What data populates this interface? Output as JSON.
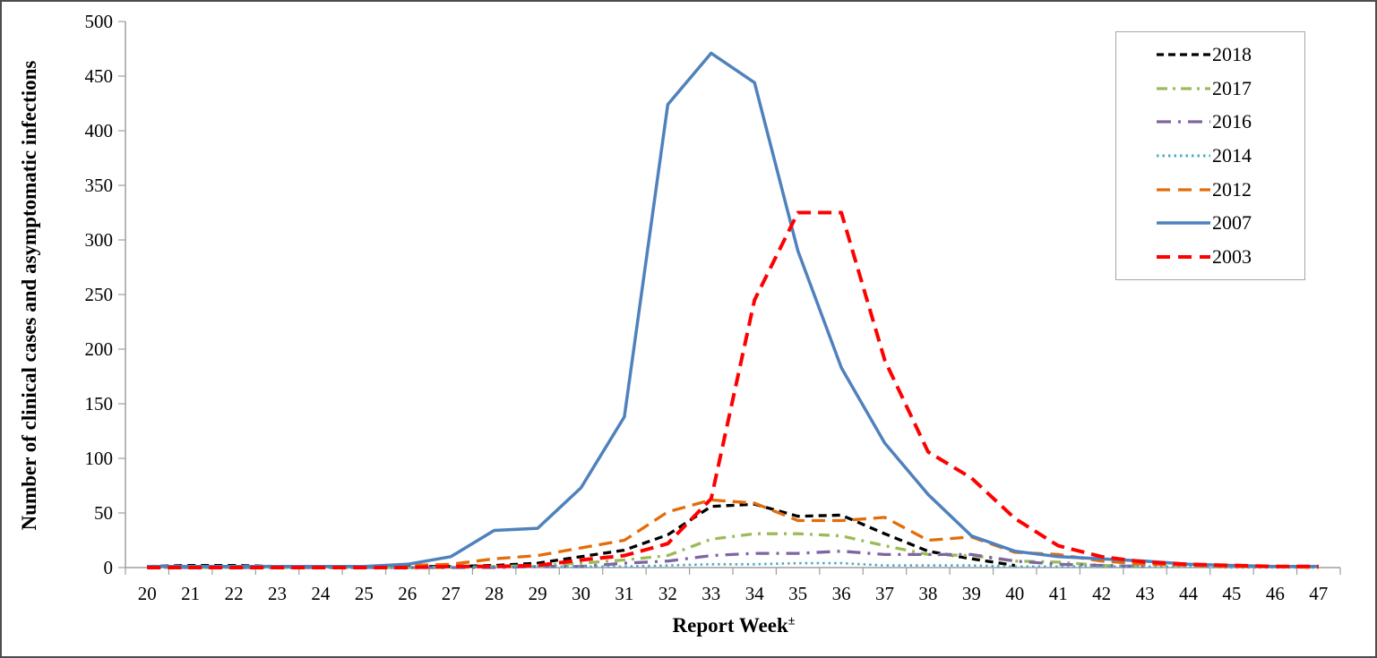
{
  "figure": {
    "y_axis_title": "Number of clinical cases and asymptomatic infections",
    "x_axis_title": "Report Week",
    "x_axis_title_superscript": "±"
  },
  "chart_data": {
    "type": "line",
    "title": "",
    "xlabel": "Report Week±",
    "ylabel": "Number of clinical cases and asymptomatic infections",
    "x": [
      20,
      21,
      22,
      23,
      24,
      25,
      26,
      27,
      28,
      29,
      30,
      31,
      32,
      33,
      34,
      35,
      36,
      37,
      38,
      39,
      40,
      41,
      42,
      43,
      44,
      45,
      46,
      47
    ],
    "ylim": [
      0,
      500
    ],
    "ytick_interval": 50,
    "grid": false,
    "legend_position": "top-right",
    "background": "#ffffff",
    "axis_color": "#9e9e9e",
    "series": [
      {
        "name": "2018",
        "color": "#000000",
        "style": "dash",
        "width": 3.3,
        "values": [
          1,
          2,
          2,
          1,
          1,
          1,
          1,
          1,
          2,
          4,
          10,
          16,
          30,
          56,
          58,
          47,
          48,
          31,
          15,
          8,
          2,
          null,
          null,
          null,
          null,
          null,
          null,
          null
        ]
      },
      {
        "name": "2017",
        "color": "#9BBB59",
        "style": "dash-dot",
        "width": 3.3,
        "values": [
          0,
          0,
          0,
          0,
          0,
          0,
          0,
          0,
          1,
          2,
          4,
          7,
          11,
          26,
          31,
          31,
          29,
          20,
          12,
          11,
          6,
          5,
          2,
          1,
          null,
          null,
          null,
          null
        ]
      },
      {
        "name": "2016",
        "color": "#8064A2",
        "style": "long-dash-dot",
        "width": 3.3,
        "values": [
          0,
          0,
          0,
          0,
          0,
          0,
          0,
          0,
          0,
          1,
          1,
          4,
          6,
          11,
          13,
          13,
          15,
          12,
          12,
          12,
          6,
          3,
          2,
          1,
          null,
          null,
          null,
          null
        ]
      },
      {
        "name": "2014",
        "color": "#4BACC6",
        "style": "dot",
        "width": 2.6,
        "values": [
          0,
          0,
          0,
          0,
          0,
          0,
          0,
          1,
          1,
          1,
          1,
          1,
          2,
          3,
          3,
          4,
          4,
          2,
          2,
          2,
          1,
          1,
          1,
          1,
          1,
          0,
          0,
          0
        ]
      },
      {
        "name": "2012",
        "color": "#E36C09",
        "style": "long-dash",
        "width": 3.3,
        "values": [
          1,
          1,
          1,
          1,
          0,
          1,
          2,
          3,
          8,
          11,
          18,
          25,
          51,
          62,
          59,
          43,
          43,
          46,
          25,
          28,
          14,
          12,
          6,
          3,
          2,
          1,
          1,
          0
        ]
      },
      {
        "name": "2007",
        "color": "#4F81BD",
        "style": "solid",
        "width": 3.5,
        "values": [
          1,
          1,
          1,
          1,
          1,
          1,
          3,
          10,
          34,
          36,
          73,
          138,
          424,
          471,
          444,
          290,
          183,
          114,
          67,
          29,
          15,
          10,
          8,
          6,
          3,
          2,
          1,
          1
        ]
      },
      {
        "name": "2003",
        "color": "#FF0000",
        "style": "long-dash",
        "width": 4,
        "values": [
          0,
          0,
          0,
          0,
          0,
          0,
          0,
          1,
          1,
          2,
          7,
          11,
          22,
          63,
          245,
          325,
          325,
          190,
          106,
          82,
          45,
          20,
          10,
          5,
          3,
          2,
          1,
          1
        ]
      }
    ]
  }
}
